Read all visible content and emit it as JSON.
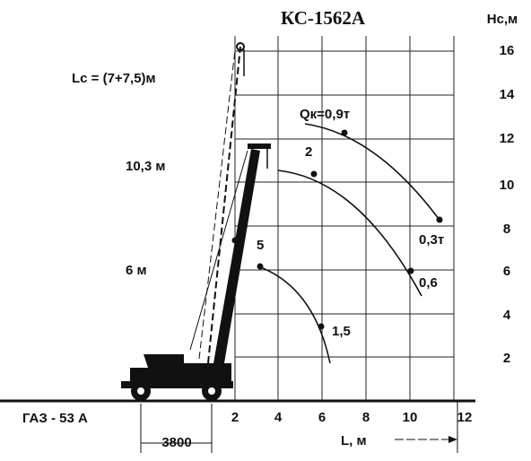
{
  "title": "КС-1562А",
  "y_axis_label": "Hс,м",
  "x_axis_label": "L, м",
  "yticks": [
    "16",
    "14",
    "12",
    "10",
    "8",
    "6",
    "4",
    "2"
  ],
  "xticks": [
    "2",
    "4",
    "6",
    "8",
    "10",
    "12"
  ],
  "labels": {
    "boom_length": "Lс = (7+7,5)м",
    "boom_10": "10,3 м",
    "boom_6": "6 м",
    "load_09": "Qк=0,9т",
    "load_2": "2",
    "load_5": "5",
    "load_03": "0,3т",
    "load_06": "0,6",
    "load_15": "1,5"
  },
  "vehicle": "ГАЗ - 53 А",
  "wheelbase": "3800"
}
